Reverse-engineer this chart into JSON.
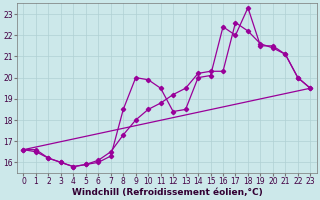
{
  "background_color": "#cce8ea",
  "line_color": "#990099",
  "grid_color": "#b0d0d4",
  "xlabel": "Windchill (Refroidissement éolien,°C)",
  "xlabel_fontsize": 6.5,
  "tick_fontsize": 5.5,
  "ylim": [
    15.5,
    23.5
  ],
  "xlim": [
    -0.5,
    23.5
  ],
  "yticks": [
    16,
    17,
    18,
    19,
    20,
    21,
    22,
    23
  ],
  "xticks": [
    0,
    1,
    2,
    3,
    4,
    5,
    6,
    7,
    8,
    9,
    10,
    11,
    12,
    13,
    14,
    15,
    16,
    17,
    18,
    19,
    20,
    21,
    22,
    23
  ],
  "line_trend_x": [
    0,
    23
  ],
  "line_trend_y": [
    16.6,
    19.5
  ],
  "line2_x": [
    0,
    1,
    2,
    3,
    4,
    5,
    6,
    7,
    8,
    9,
    10,
    11,
    12,
    13,
    14,
    15,
    16,
    17,
    18,
    19,
    20,
    21,
    22,
    23
  ],
  "line2_y": [
    16.6,
    16.6,
    16.2,
    16.0,
    15.8,
    15.9,
    16.0,
    16.3,
    18.5,
    20.0,
    19.9,
    19.5,
    18.4,
    18.5,
    20.0,
    20.1,
    22.4,
    22.0,
    23.3,
    21.5,
    21.5,
    21.1,
    20.0,
    19.5
  ],
  "line3_x": [
    0,
    1,
    2,
    3,
    4,
    5,
    6,
    7,
    8,
    9,
    10,
    11,
    12,
    13,
    14,
    15,
    16,
    17,
    18,
    19,
    20,
    21,
    22,
    23
  ],
  "line3_y": [
    16.6,
    16.5,
    16.2,
    16.0,
    15.8,
    15.9,
    16.1,
    16.5,
    17.3,
    18.0,
    18.5,
    18.8,
    19.2,
    19.5,
    20.2,
    20.3,
    20.3,
    22.6,
    22.2,
    21.6,
    21.4,
    21.1,
    20.0,
    19.5
  ]
}
